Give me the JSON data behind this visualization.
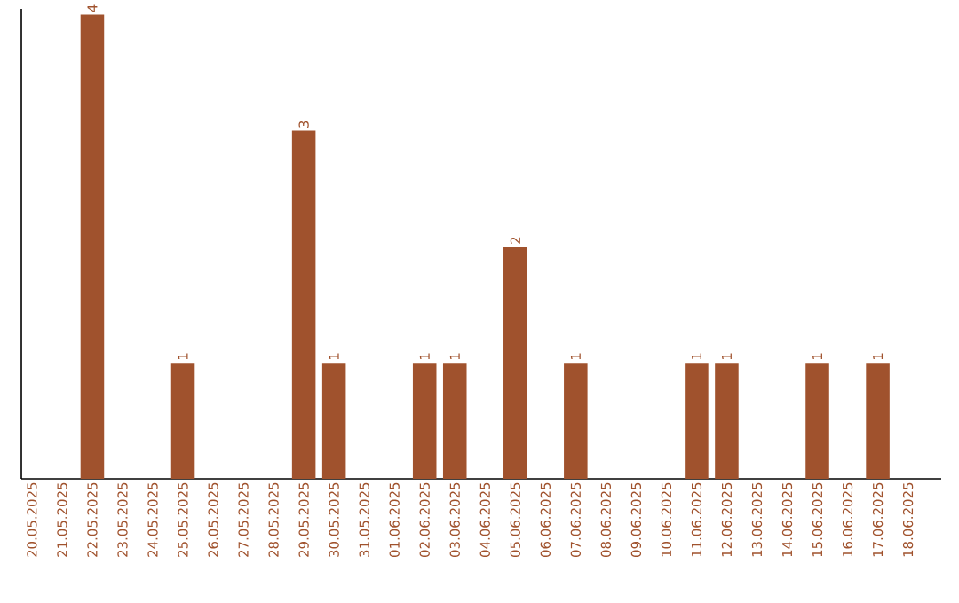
{
  "chart_data": {
    "type": "bar",
    "color": "#a0522d",
    "categories": [
      "20.05.2025",
      "21.05.2025",
      "22.05.2025",
      "23.05.2025",
      "24.05.2025",
      "25.05.2025",
      "26.05.2025",
      "27.05.2025",
      "28.05.2025",
      "29.05.2025",
      "30.05.2025",
      "31.05.2025",
      "01.06.2025",
      "02.06.2025",
      "03.06.2025",
      "04.06.2025",
      "05.06.2025",
      "06.06.2025",
      "07.06.2025",
      "08.06.2025",
      "09.06.2025",
      "10.06.2025",
      "11.06.2025",
      "12.06.2025",
      "13.06.2025",
      "14.06.2025",
      "15.06.2025",
      "16.06.2025",
      "17.06.2025",
      "18.06.2025"
    ],
    "values": [
      0,
      0,
      4,
      0,
      0,
      1,
      0,
      0,
      0,
      3,
      1,
      0,
      0,
      1,
      1,
      0,
      2,
      0,
      1,
      0,
      0,
      0,
      1,
      1,
      0,
      0,
      1,
      0,
      1,
      0
    ],
    "value_labels": [
      null,
      null,
      "4",
      null,
      null,
      "1",
      null,
      null,
      null,
      "3",
      "1",
      null,
      null,
      "1",
      "1",
      null,
      "2",
      null,
      "1",
      null,
      null,
      null,
      "1",
      "1",
      null,
      null,
      "1",
      null,
      "1",
      null
    ],
    "ylim": [
      0,
      4.05
    ]
  }
}
